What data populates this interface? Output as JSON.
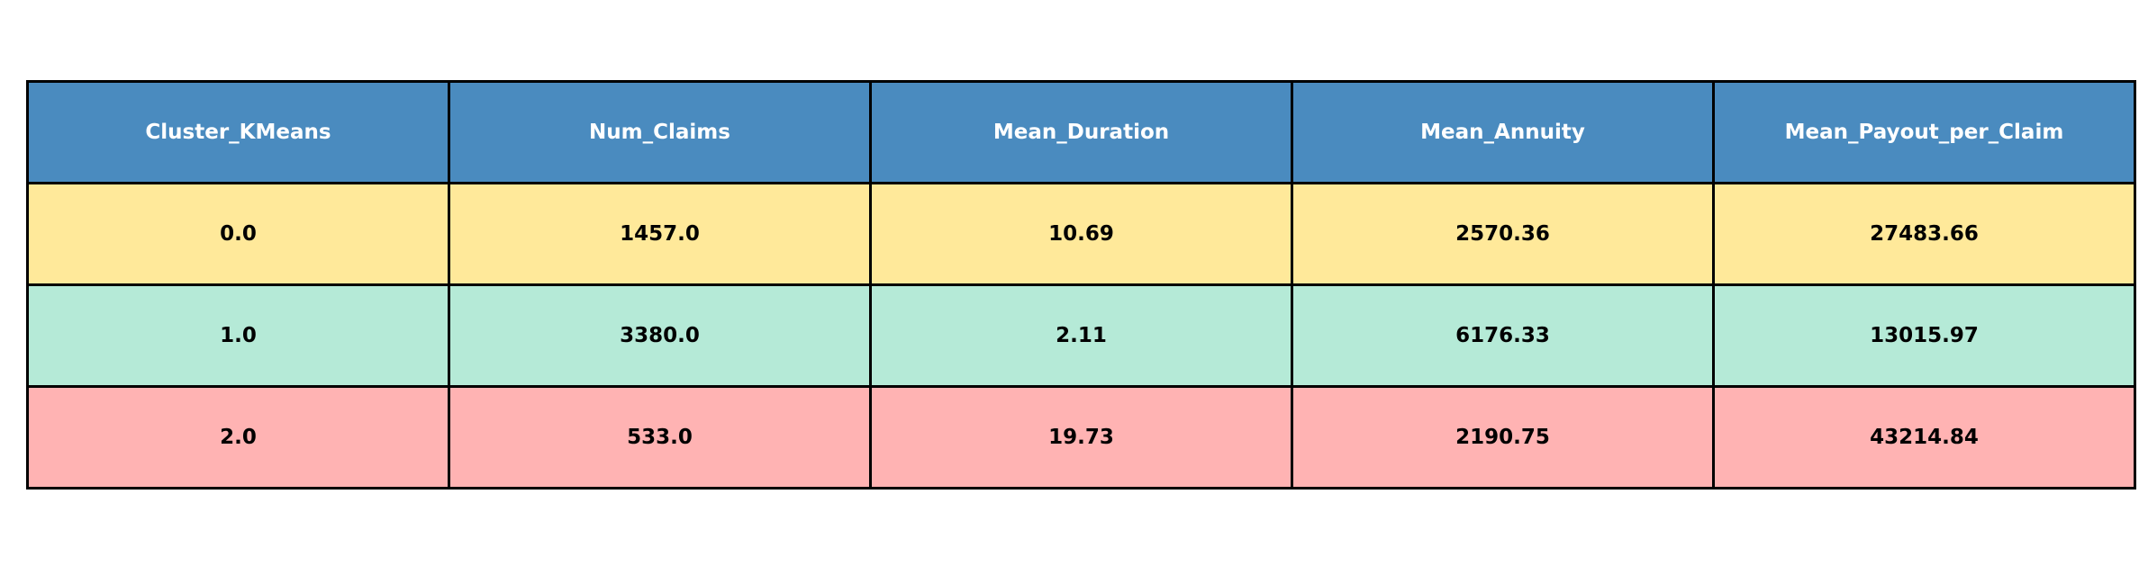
{
  "chart_data": {
    "type": "table",
    "columns": [
      "Cluster_KMeans",
      "Num_Claims",
      "Mean_Duration",
      "Mean_Annuity",
      "Mean_Payout_per_Claim"
    ],
    "rows": [
      [
        "0.0",
        "1457.0",
        "10.69",
        "2570.36",
        "27483.66"
      ],
      [
        "1.0",
        "3380.0",
        "2.11",
        "6176.33",
        "13015.97"
      ],
      [
        "2.0",
        "533.0",
        "19.73",
        "2190.75",
        "43214.84"
      ]
    ]
  },
  "colors": {
    "header_bg": "#4a8bbf",
    "header_text": "#ffffff",
    "row_bg": [
      "#ffe99a",
      "#b5ead7",
      "#ffb3b3"
    ],
    "border": "#000000"
  }
}
